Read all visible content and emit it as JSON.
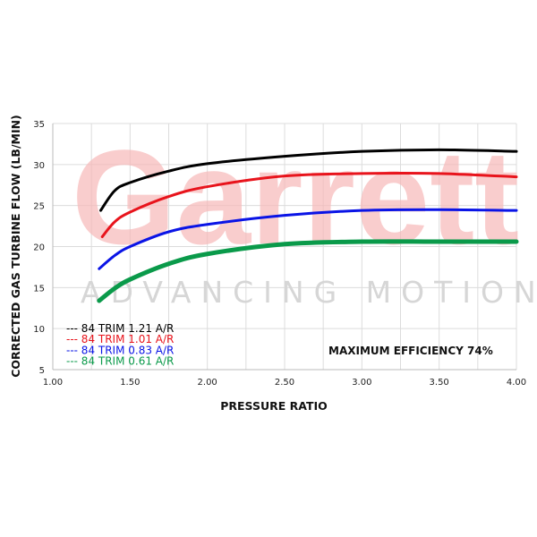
{
  "chart_data": {
    "type": "line",
    "title": "",
    "xlabel": "PRESSURE RATIO",
    "ylabel": "CORRECTED GAS TURBINE FLOW (LB/MIN)",
    "xlim": [
      1.0,
      4.0
    ],
    "ylim": [
      5,
      35
    ],
    "xticks": [
      "1.00",
      "1.50",
      "2.00",
      "2.50",
      "3.00",
      "3.50",
      "4.00"
    ],
    "yticks": [
      "5",
      "10",
      "15",
      "20",
      "25",
      "30",
      "35"
    ],
    "grid": true,
    "legend_position": "bottom-left",
    "annotation": "MAXIMUM EFFICIENCY  74%",
    "watermark": {
      "brand": "Garrett",
      "tagline": "ADVANCING MOTION"
    },
    "series": [
      {
        "name": "--- 84 TRIM 1.21 A/R",
        "color": "#000000",
        "x": [
          1.31,
          1.4,
          1.5,
          1.75,
          2.0,
          2.5,
          3.0,
          3.5,
          4.0
        ],
        "y": [
          24.4,
          26.8,
          27.8,
          29.2,
          30.1,
          31.0,
          31.6,
          31.8,
          31.6
        ]
      },
      {
        "name": "--- 84 TRIM 1.01 A/R",
        "color": "#e8141c",
        "x": [
          1.32,
          1.4,
          1.5,
          1.75,
          2.0,
          2.5,
          3.0,
          3.5,
          4.0
        ],
        "y": [
          21.2,
          23.0,
          24.2,
          26.1,
          27.3,
          28.6,
          28.9,
          28.9,
          28.5
        ]
      },
      {
        "name": "--- 84 TRIM 0.83 A/R",
        "color": "#0a14e6",
        "x": [
          1.3,
          1.4,
          1.5,
          1.75,
          2.0,
          2.5,
          3.0,
          3.5,
          4.0
        ],
        "y": [
          17.3,
          18.9,
          20.0,
          21.8,
          22.7,
          23.8,
          24.4,
          24.5,
          24.4
        ]
      },
      {
        "name": "--- 84 TRIM 0.61 A/R",
        "color": "#0a9a4a",
        "x": [
          1.3,
          1.4,
          1.5,
          1.75,
          2.0,
          2.5,
          3.0,
          3.5,
          4.0
        ],
        "y": [
          13.4,
          14.9,
          16.0,
          17.9,
          19.1,
          20.3,
          20.6,
          20.6,
          20.6
        ]
      }
    ]
  }
}
